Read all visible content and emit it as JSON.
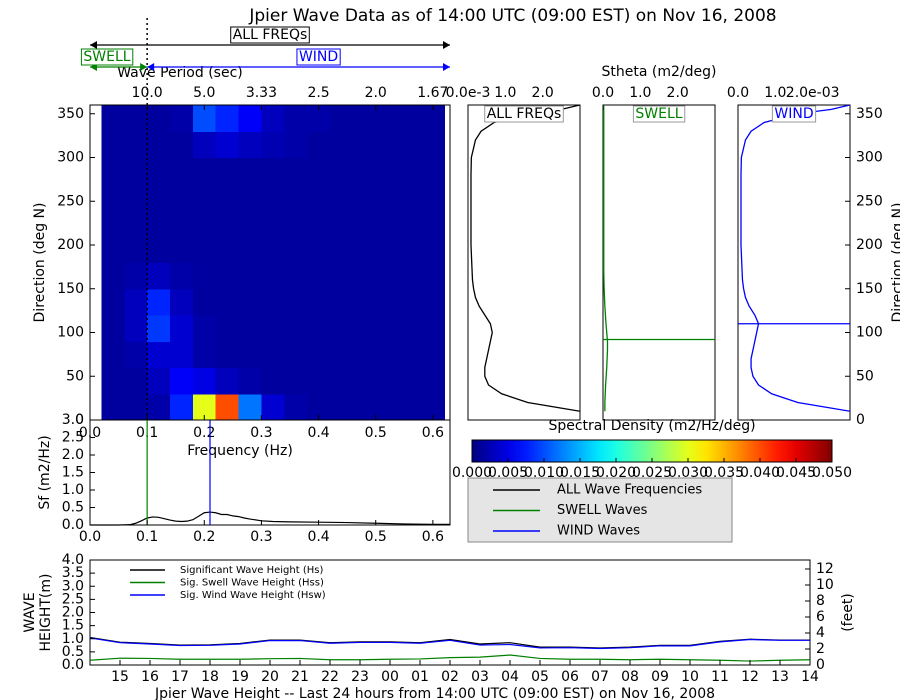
{
  "title": "Jpier Wave Data as of 14:00 UTC (09:00 EST) on Nov 16, 2008",
  "chart_data": [
    {
      "type": "heatmap",
      "xlabel": "Frequency (Hz)",
      "ylabel": "Direction (deg N)",
      "x2label": "Wave Period (sec)",
      "xlim": [
        0,
        0.63
      ],
      "ylim": [
        0,
        360
      ],
      "xticks": [
        {
          "value": 0,
          "label": "0.0"
        },
        0.1,
        0.2,
        0.3,
        0.4,
        0.5,
        0.6
      ],
      "x2ticks": [
        {
          "value": 0.1,
          "label": "10.0"
        },
        {
          "value": 0.2,
          "label": "5.0"
        },
        {
          "value": 0.3,
          "label": "3.33"
        },
        {
          "value": 0.4,
          "label": "2.5"
        },
        {
          "value": 0.5,
          "label": "2.0"
        },
        {
          "value": 0.6,
          "label": "1.67"
        }
      ],
      "yticks": [
        0,
        50,
        100,
        150,
        200,
        250,
        300,
        350
      ],
      "xbins": [
        0.02,
        0.06,
        0.1,
        0.14,
        0.18,
        0.22,
        0.26,
        0.3,
        0.34,
        0.38,
        0.42,
        0.46,
        0.5,
        0.54,
        0.58,
        0.62
      ],
      "ybins": [
        0,
        30,
        60,
        90,
        120,
        150,
        180,
        210,
        240,
        270,
        300,
        330,
        360
      ],
      "colormap": "jet",
      "z": [
        [
          0.0015,
          0.0015,
          0.002,
          0.008,
          0.03,
          0.04,
          0.012,
          0.004,
          0.002,
          0.0015,
          0.0015,
          0.0015,
          0.0015,
          0.0015,
          0.0015
        ],
        [
          0.0015,
          0.0015,
          0.003,
          0.006,
          0.005,
          0.003,
          0.002,
          0.0015,
          0.0015,
          0.0015,
          0.0015,
          0.0015,
          0.0015,
          0.0015,
          0.0015
        ],
        [
          0.0015,
          0.002,
          0.004,
          0.004,
          0.002,
          0.0015,
          0.0015,
          0.0015,
          0.0015,
          0.0015,
          0.0015,
          0.0015,
          0.0015,
          0.0015,
          0.0015
        ],
        [
          0.0015,
          0.003,
          0.009,
          0.004,
          0.002,
          0.0015,
          0.0015,
          0.0015,
          0.0015,
          0.0015,
          0.0015,
          0.0015,
          0.0015,
          0.0015,
          0.0015
        ],
        [
          0.0015,
          0.003,
          0.008,
          0.003,
          0.0015,
          0.0015,
          0.0015,
          0.0015,
          0.0015,
          0.0015,
          0.0015,
          0.0015,
          0.0015,
          0.0015,
          0.0015
        ],
        [
          0.0015,
          0.002,
          0.003,
          0.002,
          0.0015,
          0.0015,
          0.0015,
          0.0015,
          0.0015,
          0.0015,
          0.0015,
          0.0015,
          0.0015,
          0.0015,
          0.0015
        ],
        [
          0.0015,
          0.0015,
          0.0015,
          0.0015,
          0.0015,
          0.0015,
          0.0015,
          0.0015,
          0.0015,
          0.0015,
          0.0015,
          0.0015,
          0.0015,
          0.0015,
          0.0015
        ],
        [
          0.0015,
          0.0015,
          0.0015,
          0.0015,
          0.0015,
          0.0015,
          0.0015,
          0.0015,
          0.0015,
          0.0015,
          0.0015,
          0.0015,
          0.0015,
          0.0015,
          0.0015
        ],
        [
          0.0015,
          0.0015,
          0.0015,
          0.0015,
          0.0015,
          0.0015,
          0.0015,
          0.0015,
          0.0015,
          0.0015,
          0.0015,
          0.0015,
          0.0015,
          0.0015,
          0.0015
        ],
        [
          0.0015,
          0.0015,
          0.0015,
          0.0015,
          0.0015,
          0.0015,
          0.0015,
          0.0015,
          0.0015,
          0.0015,
          0.0015,
          0.0015,
          0.0015,
          0.0015,
          0.0015
        ],
        [
          0.0015,
          0.0015,
          0.0015,
          0.0015,
          0.003,
          0.004,
          0.003,
          0.0025,
          0.002,
          0.0015,
          0.0015,
          0.0015,
          0.0015,
          0.0015,
          0.0015
        ],
        [
          0.0015,
          0.0015,
          0.0015,
          0.002,
          0.01,
          0.008,
          0.006,
          0.003,
          0.002,
          0.002,
          0.0015,
          0.0015,
          0.0015,
          0.0015,
          0.0015
        ]
      ],
      "colorbar": {
        "label": "Spectral Density (m2/Hz/deg)",
        "clim": [
          0,
          0.05
        ],
        "ticks": [
          {
            "value": 0,
            "label": "0.000"
          },
          0.005,
          {
            "value": 0.01,
            "label": "0.010"
          },
          0.015,
          {
            "value": 0.02,
            "label": "0.020"
          },
          0.025,
          {
            "value": 0.03,
            "label": "0.030"
          },
          0.035,
          {
            "value": 0.04,
            "label": "0.040"
          },
          0.045,
          {
            "value": 0.05,
            "label": "0.050"
          }
        ]
      },
      "bands": [
        {
          "label": "ALL FREQs",
          "from": 0,
          "to": 0.63,
          "color": "#000000"
        },
        {
          "label": "SWELL",
          "from": 0,
          "to": 0.1,
          "color": "#008000"
        },
        {
          "label": "WIND",
          "from": 0.1,
          "to": 0.63,
          "color": "#0000ff"
        }
      ]
    },
    {
      "type": "profile",
      "label": "ALL FREQs",
      "color": "#000000",
      "xlim": [
        0,
        3
      ],
      "ylim": [
        0,
        360
      ],
      "xticks": [
        {
          "value": 0,
          "label": "0.0e-3"
        },
        {
          "value": 1,
          "label": "1.0"
        },
        {
          "value": 2,
          "label": "2.0"
        }
      ],
      "y": [
        10,
        20,
        30,
        40,
        50,
        60,
        70,
        80,
        90,
        100,
        110,
        120,
        130,
        140,
        150,
        160,
        180,
        200,
        220,
        240,
        260,
        280,
        300,
        320,
        330,
        340,
        350,
        355,
        360
      ],
      "values": [
        3.0,
        1.6,
        0.9,
        0.55,
        0.45,
        0.45,
        0.5,
        0.55,
        0.6,
        0.65,
        0.6,
        0.45,
        0.3,
        0.2,
        0.15,
        0.12,
        0.1,
        0.08,
        0.08,
        0.08,
        0.08,
        0.08,
        0.09,
        0.2,
        0.35,
        0.7,
        1.6,
        2.5,
        3.0
      ]
    },
    {
      "type": "profile",
      "label": "SWELL",
      "color": "#008000",
      "xlabel": "Stheta (m2/deg)",
      "xlim": [
        0,
        3
      ],
      "ylim": [
        0,
        360
      ],
      "xticks": [
        {
          "value": 0,
          "label": "0.0"
        },
        {
          "value": 1,
          "label": "1.0"
        },
        {
          "value": 2,
          "label": "2.0"
        }
      ],
      "y": [
        10,
        20,
        40,
        60,
        80,
        90,
        110,
        130,
        150,
        170,
        200,
        250,
        300,
        350,
        360
      ],
      "values": [
        0.05,
        0.05,
        0.07,
        0.1,
        0.12,
        0.12,
        0.08,
        0.05,
        0.03,
        0.02,
        0.02,
        0.02,
        0.02,
        0.02,
        0.02
      ],
      "peak": 92
    },
    {
      "type": "profile",
      "label": "WIND",
      "color": "#0000ff",
      "ylabel": "Direction (deg N)",
      "xlim": [
        0,
        3
      ],
      "ylim": [
        0,
        360
      ],
      "xticks": [
        {
          "value": 0,
          "label": "0.0"
        },
        {
          "value": 1,
          "label": "1.0"
        },
        {
          "value": 2,
          "label": "2.0e-03"
        }
      ],
      "yticks": [
        0,
        50,
        100,
        150,
        200,
        250,
        300,
        350
      ],
      "y": [
        10,
        20,
        30,
        40,
        50,
        60,
        70,
        80,
        90,
        100,
        110,
        120,
        130,
        140,
        150,
        160,
        180,
        200,
        240,
        280,
        300,
        320,
        330,
        340,
        350,
        355,
        360
      ],
      "values": [
        3.0,
        1.6,
        0.9,
        0.55,
        0.4,
        0.35,
        0.35,
        0.4,
        0.45,
        0.5,
        0.55,
        0.45,
        0.3,
        0.2,
        0.15,
        0.12,
        0.1,
        0.08,
        0.08,
        0.08,
        0.09,
        0.2,
        0.35,
        0.7,
        1.6,
        2.5,
        3.0
      ],
      "peak": 110
    },
    {
      "type": "line",
      "ylabel": "Sf (m2/Hz)",
      "xlim": [
        0,
        0.63
      ],
      "ylim": [
        0,
        3.0
      ],
      "xticks": [
        {
          "value": 0,
          "label": "0.0"
        },
        0.1,
        0.2,
        0.3,
        0.4,
        0.5,
        0.6
      ],
      "yticks": [
        {
          "value": 0,
          "label": "0.0"
        },
        0.5,
        {
          "value": 1,
          "label": "1.0"
        },
        1.5,
        {
          "value": 2,
          "label": "2.0"
        },
        2.5,
        {
          "value": 3,
          "label": "3.0"
        }
      ],
      "series": [
        {
          "name": "ALL Wave Frequencies",
          "color": "#000000",
          "x": [
            0,
            0.05,
            0.07,
            0.08,
            0.09,
            0.1,
            0.11,
            0.12,
            0.13,
            0.14,
            0.15,
            0.16,
            0.17,
            0.18,
            0.19,
            0.2,
            0.21,
            0.22,
            0.23,
            0.24,
            0.25,
            0.26,
            0.27,
            0.28,
            0.3,
            0.32,
            0.35,
            0.4,
            0.45,
            0.5,
            0.55,
            0.6,
            0.63
          ],
          "values": [
            0,
            0,
            0.01,
            0.05,
            0.12,
            0.2,
            0.23,
            0.22,
            0.18,
            0.14,
            0.11,
            0.1,
            0.11,
            0.15,
            0.25,
            0.35,
            0.37,
            0.35,
            0.3,
            0.3,
            0.26,
            0.24,
            0.2,
            0.17,
            0.12,
            0.1,
            0.09,
            0.08,
            0.07,
            0.05,
            0.03,
            0.02,
            0.02
          ]
        }
      ],
      "markers": [
        {
          "name": "SWELL Waves",
          "color": "#008000",
          "x": 0.1
        },
        {
          "name": "WIND Waves",
          "color": "#0000ff",
          "x": 0.21
        }
      ]
    },
    {
      "type": "line",
      "xlabel": "Jpier Wave Height -- Last 24 hours from 14:00 UTC (09:00 EST) on Nov 16, 2008",
      "ylabel": [
        "WAVE",
        "HEIGHT(m)"
      ],
      "y2label": "(feet)",
      "categories": [
        null,
        "15",
        "16",
        "17",
        "18",
        "19",
        "20",
        "21",
        "22",
        "23",
        "00",
        "01",
        "02",
        "03",
        "04",
        "05",
        "06",
        "07",
        "08",
        "09",
        "10",
        "11",
        "12",
        "13",
        "14"
      ],
      "ylim": [
        0,
        4.0
      ],
      "yticks": [
        {
          "value": 0,
          "label": "0.0"
        },
        0.5,
        {
          "value": 1,
          "label": "1.0"
        },
        1.5,
        {
          "value": 2,
          "label": "2.0"
        },
        2.5,
        {
          "value": 3,
          "label": "3.0"
        },
        3.5,
        {
          "value": 4,
          "label": "4.0"
        }
      ],
      "y2lim": [
        0,
        13.123
      ],
      "y2ticks": [
        0,
        2,
        4,
        6,
        8,
        10,
        12
      ],
      "series": [
        {
          "name": "Significant Wave Height (Hs)",
          "color": "#000000",
          "values": [
            1.05,
            0.87,
            0.82,
            0.76,
            0.77,
            0.82,
            0.95,
            0.95,
            0.85,
            0.88,
            0.88,
            0.85,
            0.97,
            0.8,
            0.85,
            0.68,
            0.68,
            0.65,
            0.68,
            0.75,
            0.75,
            0.9,
            0.98,
            0.95,
            0.95
          ]
        },
        {
          "name": "Sig. Swell Wave Height (Hss)",
          "color": "#008000",
          "values": [
            0.18,
            0.26,
            0.25,
            0.22,
            0.22,
            0.22,
            0.24,
            0.25,
            0.2,
            0.2,
            0.22,
            0.23,
            0.28,
            0.3,
            0.38,
            0.25,
            0.22,
            0.22,
            0.2,
            0.22,
            0.2,
            0.18,
            0.15,
            0.18,
            0.2
          ]
        },
        {
          "name": "Sig. Wind Wave Height (Hsw)",
          "color": "#0000ff",
          "values": [
            1.03,
            0.85,
            0.8,
            0.74,
            0.75,
            0.8,
            0.93,
            0.93,
            0.83,
            0.86,
            0.86,
            0.83,
            0.94,
            0.76,
            0.78,
            0.65,
            0.66,
            0.63,
            0.66,
            0.73,
            0.73,
            0.88,
            0.97,
            0.94,
            0.94
          ]
        }
      ]
    }
  ]
}
